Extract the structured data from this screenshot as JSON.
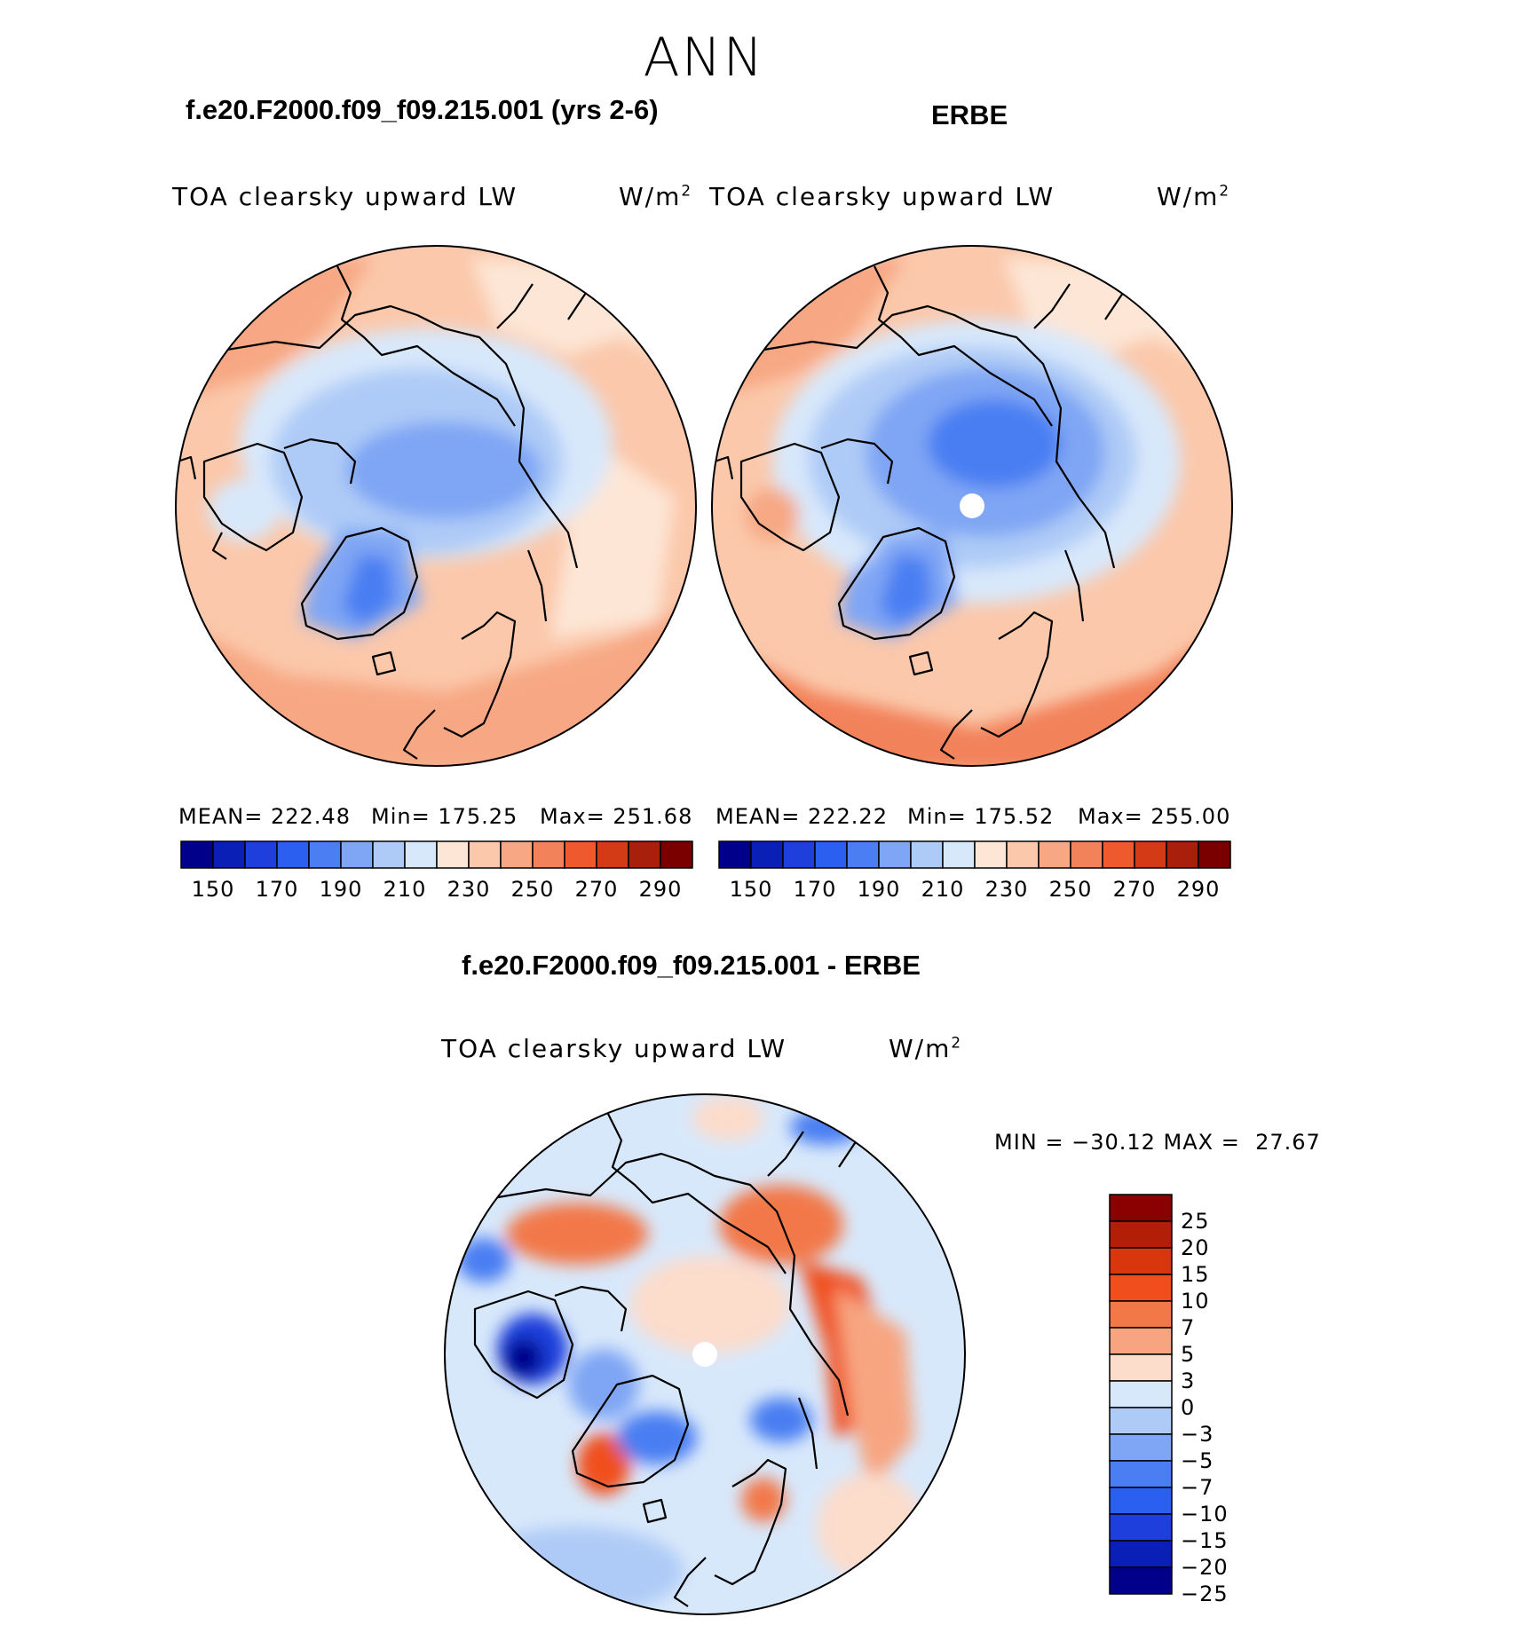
{
  "season": "ANN",
  "panels": [
    {
      "title": "f.e20.F2000.f09_f09.215.001 (yrs 2-6)",
      "field": "TOA clearsky upward LW",
      "units": "W/m",
      "units_sup": "2",
      "mean": "MEAN= 222.48",
      "min": "Min= 175.25",
      "max": "Max= 251.68",
      "colorbar_ticks": [
        "150",
        "170",
        "190",
        "210",
        "230",
        "250",
        "270",
        "290"
      ]
    },
    {
      "title": "ERBE",
      "field": "TOA clearsky upward LW",
      "units": "W/m",
      "units_sup": "2",
      "mean": "MEAN= 222.22",
      "min": "Min= 175.52",
      "max": "Max= 255.00",
      "colorbar_ticks": [
        "150",
        "170",
        "190",
        "210",
        "230",
        "250",
        "270",
        "290"
      ]
    }
  ],
  "diff": {
    "title": "f.e20.F2000.f09_f09.215.001 - ERBE",
    "field": "TOA clearsky upward LW",
    "units": "W/m",
    "units_sup": "2",
    "minmax": "MIN = −30.12 MAX =  27.67",
    "colorbar_ticks": [
      "25",
      "20",
      "15",
      "10",
      "7",
      "5",
      "3",
      "0",
      "−3",
      "−5",
      "−7",
      "−10",
      "−15",
      "−20",
      "−25"
    ]
  },
  "colors": {
    "abs_scale": [
      "#00008b",
      "#0a1fb5",
      "#1e3fdc",
      "#2b5ff0",
      "#4a7ef2",
      "#7fa6f4",
      "#aecbf7",
      "#d8e8fb",
      "#fde6d6",
      "#fbc8ab",
      "#f7a783",
      "#f2825a",
      "#ee5a2e",
      "#d33a16",
      "#a8200c",
      "#7a0000"
    ],
    "diff_scale": [
      "#8b0000",
      "#b21e08",
      "#d8360d",
      "#f04f1d",
      "#f27848",
      "#f7a580",
      "#fcdccb",
      "#d8e8fb",
      "#aecbf7",
      "#7fa6f4",
      "#4a7ef2",
      "#2b5ff0",
      "#1e3fdc",
      "#0a1fb5",
      "#00008b"
    ]
  }
}
